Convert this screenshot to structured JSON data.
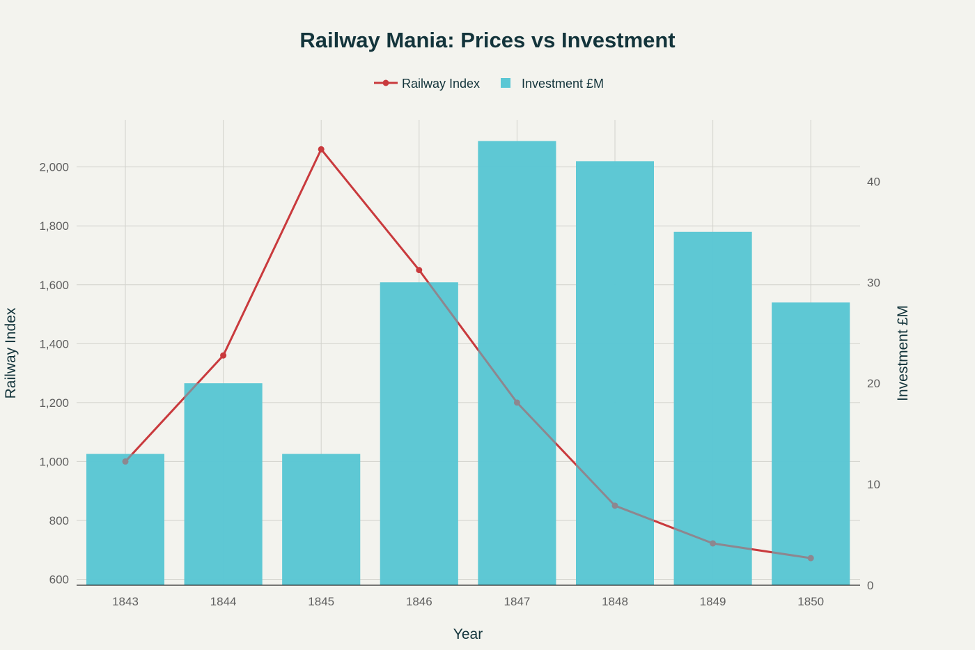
{
  "chart_data": {
    "type": "bar+line",
    "title": "Railway Mania: Prices vs Investment",
    "xlabel": "Year",
    "ylabel": "Railway Index",
    "y2label": "Investment £M",
    "categories": [
      "1843",
      "1844",
      "1845",
      "1846",
      "1847",
      "1848",
      "1849",
      "1850"
    ],
    "series": [
      {
        "name": "Railway Index",
        "type": "line",
        "axis": "left",
        "color": "#c93a3d",
        "values": [
          1000,
          1360,
          2060,
          1650,
          1200,
          850,
          722,
          672
        ]
      },
      {
        "name": "Investment £M",
        "type": "bar",
        "axis": "right",
        "color": "#5bc7d4",
        "values": [
          13,
          20,
          13,
          30,
          44,
          42,
          35,
          28
        ]
      }
    ],
    "ylim": [
      580,
      2160
    ],
    "yticks": [
      600,
      800,
      1000,
      1200,
      1400,
      1600,
      1800,
      2000
    ],
    "ytick_labels": [
      "600",
      "800",
      "1,000",
      "1,200",
      "1,400",
      "1,600",
      "1,800",
      "2,000"
    ],
    "y2lim": [
      0,
      46.1
    ],
    "y2ticks": [
      0,
      10,
      20,
      30,
      40
    ],
    "y2tick_labels": [
      "0",
      "10",
      "20",
      "30",
      "40"
    ],
    "legend_position": "top-center",
    "grid": true
  }
}
